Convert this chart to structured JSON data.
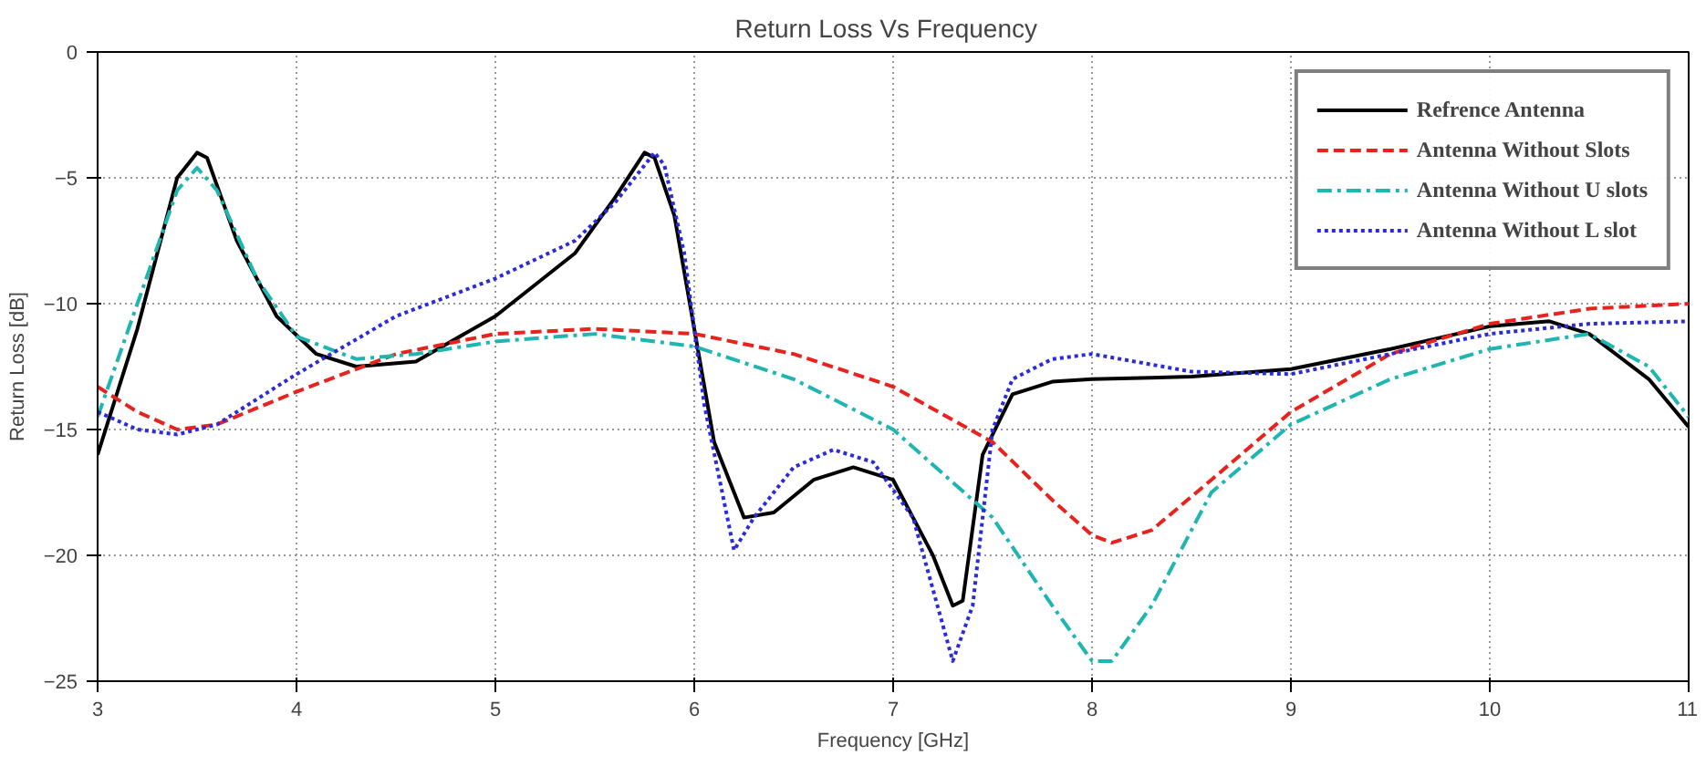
{
  "chart_data": {
    "type": "line",
    "title": "Return Loss  Vs  Frequency",
    "xlabel": "Frequency [GHz]",
    "ylabel": "Return Loss [dB]",
    "xlim": [
      3,
      11
    ],
    "xticks": [
      3,
      4,
      5,
      6,
      7,
      8,
      9,
      10,
      11
    ],
    "ylim": [
      -25,
      0
    ],
    "yticks": [
      -25,
      -20,
      -15,
      -10,
      -5,
      0
    ],
    "grid": true,
    "legend": "top right",
    "series": [
      {
        "name": "Refrence Antenna",
        "color": "#000000",
        "line_style": "solid",
        "x": [
          3,
          3.2,
          3.4,
          3.5,
          3.55,
          3.7,
          3.9,
          4.1,
          4.3,
          4.6,
          5.0,
          5.4,
          5.6,
          5.75,
          5.8,
          5.9,
          6.0,
          6.1,
          6.25,
          6.4,
          6.6,
          6.8,
          7.0,
          7.2,
          7.3,
          7.35,
          7.45,
          7.6,
          7.8,
          8.0,
          8.5,
          9.0,
          9.5,
          10.0,
          10.3,
          10.5,
          10.8,
          11
        ],
        "values": [
          -16,
          -11,
          -5,
          -4,
          -4.2,
          -7.5,
          -10.5,
          -12,
          -12.5,
          -12.3,
          -10.5,
          -8,
          -5.8,
          -4,
          -4.2,
          -6.5,
          -11,
          -15.5,
          -18.5,
          -18.3,
          -17,
          -16.5,
          -17,
          -20,
          -22,
          -21.8,
          -16,
          -13.6,
          -13.1,
          -13,
          -12.9,
          -12.6,
          -11.8,
          -10.9,
          -10.7,
          -11.2,
          -13,
          -14.9
        ]
      },
      {
        "name": "Antenna Without Slots",
        "color": "#e8221c",
        "line_style": "dashed",
        "x": [
          3,
          3.2,
          3.4,
          3.6,
          4,
          4.5,
          5,
          5.5,
          6,
          6.5,
          7,
          7.5,
          7.8,
          8.0,
          8.1,
          8.3,
          8.6,
          9,
          9.5,
          10,
          10.5,
          11
        ],
        "values": [
          -13.3,
          -14.3,
          -15,
          -14.8,
          -13.5,
          -12,
          -11.2,
          -11,
          -11.2,
          -12,
          -13.3,
          -15.5,
          -17.8,
          -19.2,
          -19.5,
          -19,
          -17,
          -14.3,
          -12,
          -10.8,
          -10.2,
          -10
        ]
      },
      {
        "name": "Antenna Without U slots",
        "color": "#1fb5b0",
        "line_style": "dashdot",
        "x": [
          3,
          3.2,
          3.4,
          3.5,
          3.6,
          3.8,
          4,
          4.3,
          4.6,
          5,
          5.5,
          6,
          6.5,
          7,
          7.5,
          7.8,
          8.0,
          8.1,
          8.3,
          8.6,
          9,
          9.5,
          10,
          10.5,
          10.8,
          11
        ],
        "values": [
          -14.5,
          -10,
          -5.5,
          -4.6,
          -5.5,
          -9,
          -11.3,
          -12.2,
          -12,
          -11.5,
          -11.2,
          -11.7,
          -13,
          -15,
          -18.5,
          -22,
          -24.2,
          -24.2,
          -22,
          -17.5,
          -14.8,
          -13,
          -11.8,
          -11.2,
          -12.5,
          -14.5
        ]
      },
      {
        "name": "Antenna Without L slot",
        "color": "#2b2bd9",
        "line_style": "dotted",
        "x": [
          3,
          3.2,
          3.4,
          3.6,
          4,
          4.5,
          5,
          5.4,
          5.6,
          5.8,
          5.85,
          5.95,
          6.05,
          6.2,
          6.3,
          6.5,
          6.7,
          6.9,
          7.1,
          7.3,
          7.4,
          7.5,
          7.6,
          7.8,
          8.0,
          8.5,
          9,
          9.5,
          10,
          10.5,
          11
        ],
        "values": [
          -14.3,
          -15,
          -15.2,
          -14.8,
          -12.8,
          -10.5,
          -9,
          -7.5,
          -6,
          -4,
          -4.5,
          -8,
          -14,
          -19.8,
          -18.5,
          -16.5,
          -15.8,
          -16.3,
          -18.5,
          -24.2,
          -22,
          -15,
          -13,
          -12.2,
          -12,
          -12.7,
          -12.8,
          -12,
          -11.2,
          -10.8,
          -10.7
        ]
      }
    ]
  }
}
